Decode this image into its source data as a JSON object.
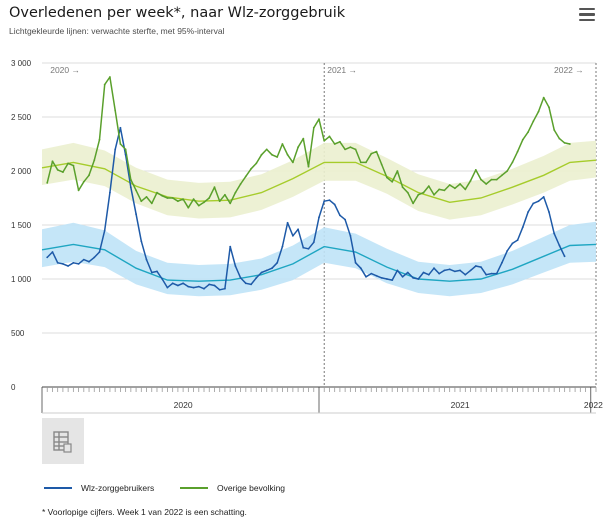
{
  "header": {
    "title": "Overledenen per week*, naar Wlz-zorggebruik",
    "subtitle": "Lichtgekleurde lijnen: verwachte sterfte, met 95%-interval"
  },
  "footnote": "* Voorlopige cijfers. Week 1 van 2022 is een schatting.",
  "colors": {
    "wlz": "#1e5aa8",
    "wlz_expected": "#1fa6c2",
    "wlz_band": "#bfe3f7",
    "overige": "#5aa02c",
    "overige_expected": "#a6cc2b",
    "overige_band": "#ebf0cf",
    "grid": "#dddddd"
  },
  "chart_data": {
    "type": "line",
    "title": "Overledenen per week*, naar Wlz-zorggebruik",
    "subtitle": "Lichtgekleurde lijnen: verwachte sterfte, met 95%-interval",
    "ylim": [
      0,
      3000
    ],
    "yticks": [
      0,
      500,
      1000,
      1500,
      2000,
      2500,
      3000
    ],
    "ytick_labels": [
      "0",
      "500",
      "1 000",
      "1 500",
      "2 000",
      "2 500",
      "3 000"
    ],
    "x_weeks": 106,
    "year_labels": [
      {
        "label": "2020",
        "week": 27
      },
      {
        "label": "2021",
        "week": 80
      },
      {
        "label": "2022",
        "week": 105.5
      }
    ],
    "year_markers": [
      {
        "label": "2020 →",
        "week": 1
      },
      {
        "label": "2021 →",
        "week": 54
      },
      {
        "label": "2022 →",
        "week": 106
      }
    ],
    "legend": [
      "Wlz-zorggebruikers",
      "Overige bevolking"
    ],
    "series": [
      {
        "name": "Wlz-zorggebruikers",
        "values": [
          1200,
          1250,
          1150,
          1140,
          1120,
          1150,
          1140,
          1180,
          1160,
          1200,
          1250,
          1450,
          1800,
          2200,
          2400,
          2150,
          1850,
          1600,
          1350,
          1180,
          1060,
          1070,
          1000,
          920,
          960,
          940,
          960,
          930,
          920,
          930,
          910,
          950,
          940,
          900,
          910,
          1300,
          1120,
          1010,
          960,
          950,
          1010,
          1060,
          1080,
          1100,
          1150,
          1300,
          1520,
          1400,
          1460,
          1290,
          1280,
          1340,
          1570,
          1720,
          1730,
          1690,
          1590,
          1550,
          1400,
          1150,
          1100,
          1020,
          1050,
          1030,
          1010,
          1000,
          990,
          1080,
          1020,
          1060,
          1010,
          1000,
          1060,
          1040,
          1100,
          1050,
          1080,
          1090,
          1070,
          1080,
          1040,
          1080,
          1120,
          1110,
          1040,
          1050,
          1050,
          1150,
          1260,
          1330,
          1360,
          1480,
          1620,
          1700,
          1720,
          1760,
          1620,
          1420,
          1310,
          1210
        ]
      },
      {
        "name": "Overige bevolking",
        "values": [
          1890,
          2090,
          2010,
          1990,
          2070,
          2050,
          1820,
          1900,
          1960,
          2100,
          2290,
          2800,
          2870,
          2560,
          2250,
          2200,
          1920,
          1820,
          1720,
          1760,
          1700,
          1800,
          1770,
          1750,
          1750,
          1720,
          1740,
          1660,
          1740,
          1680,
          1710,
          1750,
          1850,
          1720,
          1780,
          1700,
          1800,
          1880,
          1950,
          2020,
          2070,
          2150,
          2200,
          2150,
          2130,
          2250,
          2150,
          2080,
          2220,
          2300,
          2040,
          2400,
          2480,
          2280,
          2320,
          2250,
          2270,
          2200,
          2220,
          2200,
          2080,
          2080,
          2160,
          2180,
          2060,
          1940,
          1900,
          2000,
          1850,
          1800,
          1700,
          1780,
          1800,
          1860,
          1780,
          1830,
          1820,
          1870,
          1840,
          1880,
          1830,
          1910,
          2010,
          1920,
          1880,
          1920,
          1920,
          1960,
          2000,
          2080,
          2180,
          2290,
          2360,
          2460,
          2550,
          2680,
          2590,
          2380,
          2300,
          2260,
          2250
        ]
      },
      {
        "name": "Wlz-zorggebruikers verwacht",
        "expected_line": [
          [
            0,
            1270
          ],
          [
            6,
            1320
          ],
          [
            12,
            1270
          ],
          [
            18,
            1100
          ],
          [
            24,
            990
          ],
          [
            30,
            980
          ],
          [
            36,
            990
          ],
          [
            42,
            1040
          ],
          [
            48,
            1140
          ],
          [
            54,
            1300
          ],
          [
            60,
            1250
          ],
          [
            66,
            1110
          ],
          [
            72,
            1000
          ],
          [
            78,
            980
          ],
          [
            84,
            1000
          ],
          [
            90,
            1090
          ],
          [
            96,
            1210
          ],
          [
            101,
            1310
          ],
          [
            106,
            1320
          ]
        ],
        "interval_low": [
          [
            0,
            1110
          ],
          [
            6,
            1160
          ],
          [
            12,
            1110
          ],
          [
            18,
            950
          ],
          [
            24,
            860
          ],
          [
            30,
            840
          ],
          [
            36,
            850
          ],
          [
            42,
            900
          ],
          [
            48,
            990
          ],
          [
            54,
            1150
          ],
          [
            60,
            1100
          ],
          [
            66,
            960
          ],
          [
            72,
            870
          ],
          [
            78,
            840
          ],
          [
            84,
            870
          ],
          [
            90,
            950
          ],
          [
            96,
            1060
          ],
          [
            101,
            1150
          ],
          [
            106,
            1160
          ]
        ],
        "interval_high": [
          [
            0,
            1460
          ],
          [
            6,
            1520
          ],
          [
            12,
            1450
          ],
          [
            18,
            1260
          ],
          [
            24,
            1150
          ],
          [
            30,
            1130
          ],
          [
            36,
            1140
          ],
          [
            42,
            1190
          ],
          [
            48,
            1310
          ],
          [
            54,
            1480
          ],
          [
            60,
            1420
          ],
          [
            66,
            1280
          ],
          [
            72,
            1160
          ],
          [
            78,
            1130
          ],
          [
            84,
            1160
          ],
          [
            90,
            1260
          ],
          [
            96,
            1390
          ],
          [
            101,
            1500
          ],
          [
            106,
            1530
          ]
        ]
      },
      {
        "name": "Overige bevolking verwacht",
        "expected_line": [
          [
            0,
            2030
          ],
          [
            6,
            2080
          ],
          [
            12,
            2020
          ],
          [
            18,
            1860
          ],
          [
            24,
            1760
          ],
          [
            30,
            1720
          ],
          [
            36,
            1730
          ],
          [
            42,
            1800
          ],
          [
            48,
            1930
          ],
          [
            54,
            2080
          ],
          [
            60,
            2080
          ],
          [
            66,
            1950
          ],
          [
            72,
            1800
          ],
          [
            78,
            1710
          ],
          [
            84,
            1750
          ],
          [
            90,
            1850
          ],
          [
            96,
            1960
          ],
          [
            101,
            2080
          ],
          [
            106,
            2100
          ]
        ],
        "interval_low": [
          [
            0,
            1870
          ],
          [
            6,
            1920
          ],
          [
            12,
            1860
          ],
          [
            18,
            1700
          ],
          [
            24,
            1590
          ],
          [
            30,
            1560
          ],
          [
            36,
            1570
          ],
          [
            42,
            1640
          ],
          [
            48,
            1760
          ],
          [
            54,
            1910
          ],
          [
            60,
            1910
          ],
          [
            66,
            1790
          ],
          [
            72,
            1630
          ],
          [
            78,
            1550
          ],
          [
            84,
            1590
          ],
          [
            90,
            1690
          ],
          [
            96,
            1800
          ],
          [
            101,
            1910
          ],
          [
            106,
            1940
          ]
        ],
        "interval_high": [
          [
            0,
            2200
          ],
          [
            6,
            2260
          ],
          [
            12,
            2190
          ],
          [
            18,
            2030
          ],
          [
            24,
            1920
          ],
          [
            30,
            1890
          ],
          [
            36,
            1900
          ],
          [
            42,
            1970
          ],
          [
            48,
            2100
          ],
          [
            54,
            2260
          ],
          [
            60,
            2260
          ],
          [
            66,
            2120
          ],
          [
            72,
            1970
          ],
          [
            78,
            1880
          ],
          [
            84,
            1920
          ],
          [
            90,
            2020
          ],
          [
            96,
            2140
          ],
          [
            101,
            2260
          ],
          [
            106,
            2280
          ]
        ]
      }
    ]
  }
}
